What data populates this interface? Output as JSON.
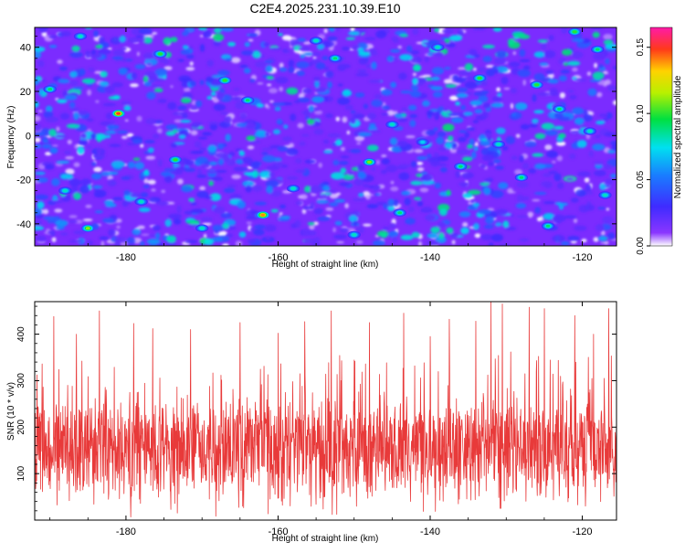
{
  "title": "C2E4.2025.231.10.39.E10",
  "colors": {
    "snr_line": "#e83a3a",
    "spectrogram_base": "#7b2cff",
    "axis": "#000000"
  },
  "chart_data": [
    {
      "type": "heatmap",
      "name": "spectrogram",
      "xlabel": "Height of straight line (km)",
      "ylabel": "Frequency (Hz)",
      "xlim": [
        -192,
        -115.5
      ],
      "ylim": [
        -50,
        49
      ],
      "x_ticks": [
        {
          "value": -180,
          "label": "-180"
        },
        {
          "value": -160,
          "label": "-160"
        },
        {
          "value": -140,
          "label": "-140"
        },
        {
          "value": -120,
          "label": "-120"
        }
      ],
      "y_ticks": [
        {
          "value": 40,
          "label": "40"
        },
        {
          "value": 20,
          "label": "20"
        },
        {
          "value": 0,
          "label": "0"
        },
        {
          "value": -20,
          "label": "-20"
        },
        {
          "value": -40,
          "label": "-40"
        }
      ],
      "colorbar": {
        "label": "Normalized spectral amplitude",
        "range": [
          0,
          0.165
        ],
        "ticks": [
          {
            "value": 0.0,
            "label": "0.00"
          },
          {
            "value": 0.05,
            "label": "0.05"
          },
          {
            "value": 0.1,
            "label": "0.10"
          },
          {
            "value": 0.15,
            "label": "0.15"
          }
        ],
        "colormap": "rainbow (white - purple - blue - cyan - green - yellow - red - magenta)"
      },
      "background_level": 0.02,
      "peaks": [
        {
          "x": -181.0,
          "y": 10,
          "value": 0.15
        },
        {
          "x": -162.0,
          "y": -36,
          "value": 0.14
        },
        {
          "x": -185.0,
          "y": -42,
          "value": 0.11
        },
        {
          "x": -175.5,
          "y": 37,
          "value": 0.1
        },
        {
          "x": -167.0,
          "y": 25,
          "value": 0.1
        },
        {
          "x": -164.0,
          "y": 16,
          "value": 0.09
        },
        {
          "x": -173.5,
          "y": -11,
          "value": 0.1
        },
        {
          "x": -148.0,
          "y": -12,
          "value": 0.11
        },
        {
          "x": -144.0,
          "y": -35,
          "value": 0.09
        },
        {
          "x": -136.0,
          "y": -14,
          "value": 0.09
        },
        {
          "x": -133.5,
          "y": 26,
          "value": 0.1
        },
        {
          "x": -128.0,
          "y": -19,
          "value": 0.09
        },
        {
          "x": -126.0,
          "y": 23,
          "value": 0.1
        },
        {
          "x": -123.0,
          "y": 12,
          "value": 0.09
        },
        {
          "x": -121.0,
          "y": 47,
          "value": 0.1
        },
        {
          "x": -118.0,
          "y": 39,
          "value": 0.09
        },
        {
          "x": -190.0,
          "y": 21,
          "value": 0.09
        },
        {
          "x": -188.0,
          "y": -25,
          "value": 0.08
        },
        {
          "x": -155.0,
          "y": 43,
          "value": 0.08
        },
        {
          "x": -152.5,
          "y": 35,
          "value": 0.09
        },
        {
          "x": -158.0,
          "y": -24,
          "value": 0.08
        },
        {
          "x": -145.0,
          "y": 5,
          "value": 0.08
        },
        {
          "x": -139.0,
          "y": 40,
          "value": 0.08
        },
        {
          "x": -131.0,
          "y": -4,
          "value": 0.08
        },
        {
          "x": -124.5,
          "y": -41,
          "value": 0.09
        },
        {
          "x": -117.0,
          "y": -27,
          "value": 0.08
        },
        {
          "x": -170.0,
          "y": -42,
          "value": 0.08
        },
        {
          "x": -178.0,
          "y": -30,
          "value": 0.08
        },
        {
          "x": -186.0,
          "y": 45,
          "value": 0.08
        },
        {
          "x": -150.0,
          "y": -45,
          "value": 0.08
        },
        {
          "x": -141.0,
          "y": -3,
          "value": 0.07
        },
        {
          "x": -119.0,
          "y": 2,
          "value": 0.08
        }
      ]
    },
    {
      "type": "line",
      "name": "snr",
      "xlabel": "Height of straight line (km)",
      "ylabel": "SNR (10 * v/v)",
      "xlim": [
        -192,
        -115.5
      ],
      "ylim": [
        0,
        470
      ],
      "x_ticks": [
        {
          "value": -180,
          "label": "-180"
        },
        {
          "value": -160,
          "label": "-160"
        },
        {
          "value": -140,
          "label": "-140"
        },
        {
          "value": -120,
          "label": "-120"
        }
      ],
      "y_ticks": [
        {
          "value": 100,
          "label": "100"
        },
        {
          "value": 200,
          "label": "200"
        },
        {
          "value": 300,
          "label": "300"
        },
        {
          "value": 400,
          "label": "400"
        }
      ],
      "signal": {
        "median": 150,
        "typical_range": [
          60,
          260
        ],
        "min": 0,
        "max": 470,
        "sample_count": 1800
      },
      "notable_peaks": [
        {
          "x": -189.5,
          "y": 438
        },
        {
          "x": -186.5,
          "y": 400
        },
        {
          "x": -183.5,
          "y": 450
        },
        {
          "x": -179.0,
          "y": 423
        },
        {
          "x": -176.5,
          "y": 412
        },
        {
          "x": -171.5,
          "y": 410
        },
        {
          "x": -165.0,
          "y": 425
        },
        {
          "x": -160.0,
          "y": 402
        },
        {
          "x": -156.5,
          "y": 427
        },
        {
          "x": -153.0,
          "y": 450
        },
        {
          "x": -148.0,
          "y": 425
        },
        {
          "x": -143.5,
          "y": 445
        },
        {
          "x": -140.0,
          "y": 395
        },
        {
          "x": -137.5,
          "y": 432
        },
        {
          "x": -134.0,
          "y": 428
        },
        {
          "x": -132.0,
          "y": 470
        },
        {
          "x": -130.5,
          "y": 465
        },
        {
          "x": -127.0,
          "y": 458
        },
        {
          "x": -125.0,
          "y": 455
        },
        {
          "x": -121.0,
          "y": 440
        },
        {
          "x": -118.5,
          "y": 400
        },
        {
          "x": -116.5,
          "y": 455
        }
      ]
    }
  ]
}
